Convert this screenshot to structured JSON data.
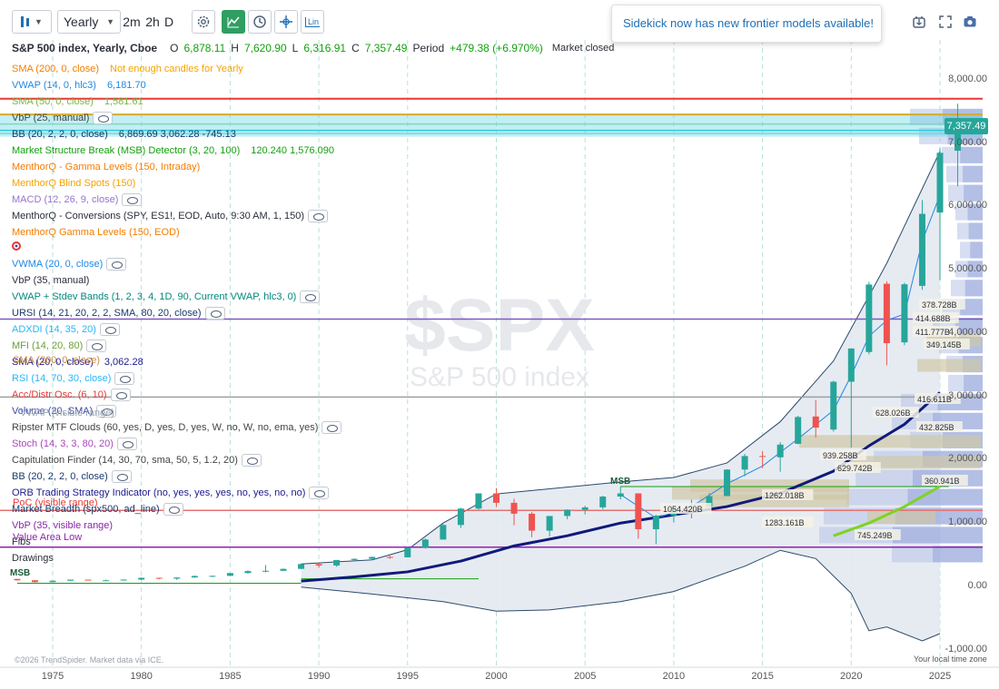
{
  "toolbar": {
    "interval_value": "Yearly",
    "btn_2m": "2m",
    "btn_2h": "2h",
    "btn_d": "D",
    "lin": "Lin"
  },
  "toast": {
    "message": "Sidekick now has new frontier models available!"
  },
  "header": {
    "symbol": "S&P 500 index, Yearly, Cboe",
    "o_label": "O",
    "o_value": "6,878.11",
    "h_label": "H",
    "h_value": "7,620.90",
    "l_label": "L",
    "l_value": "6,316.91",
    "c_label": "C",
    "c_value": "7,357.49",
    "period_label": "Period",
    "period_value": "+479.38 (+6.970%)",
    "market_status": "Market closed"
  },
  "indicators": [
    {
      "name": "SMA (200, 0, close)",
      "value": "Not enough candles for Yearly",
      "color": "#f57c00",
      "value_color": "#f5a300"
    },
    {
      "name": "VWAP (14, 0, hlc3)",
      "value": "6,181.70",
      "color": "#1e88e5",
      "value_color": "#1e88e5"
    },
    {
      "name": "SMA (50, 0, close)",
      "value": "1,581.61",
      "color": "#7cb342",
      "value_color": "#7cb342"
    },
    {
      "name": "VbP (25, manual)",
      "value": "",
      "color": "#444",
      "eye": true
    },
    {
      "name": "BB (20, 2, 2, 0, close)",
      "value": "6,869.69 3,062.28 -745.13",
      "color": "#1a3a6b",
      "value_color": "#1a3a6b"
    },
    {
      "name": "Market Structure Break (MSB) Detector (3, 20, 100)",
      "value": "120.240 1,576.090",
      "color": "#13a10e",
      "value_color": "#13a10e"
    },
    {
      "name": "MenthorQ - Gamma Levels (150, Intraday)",
      "value": "",
      "color": "#f57c00"
    },
    {
      "name": "MenthorQ Blind Spots (150)",
      "value": "",
      "color": "#f5a300"
    },
    {
      "name": "MACD (12, 26, 9, close)",
      "value": "",
      "color": "#9575cd",
      "eye": true
    },
    {
      "name": "MenthorQ - Conversions (SPY, ES1!, EOD, Auto, 9:30 AM, 1, 150)",
      "value": "",
      "color": "#2a2e39",
      "eye": true
    },
    {
      "name": "MenthorQ Gamma Levels (150, EOD)",
      "value": "",
      "color": "#f57c00"
    },
    {
      "name": "",
      "value": "",
      "color": "#e53935",
      "icon": true
    },
    {
      "name": "VWMA (20, 0, close)",
      "value": "",
      "color": "#1e88e5",
      "eye": true
    },
    {
      "name": "VbP (35, manual)",
      "value": "",
      "color": "#2a2e39"
    },
    {
      "name": "VWAP + Stdev Bands (1, 2, 3, 4, 1D, 90, Current VWAP, hlc3, 0)",
      "value": "",
      "color": "#00897b",
      "eye": true
    },
    {
      "name": "URSI (14, 21, 20, 2, 2, SMA, 80, 20, close)",
      "value": "",
      "color": "#1a3a6b",
      "eye": true
    },
    {
      "name": "ADXDI (14, 35, 20)",
      "value": "",
      "color": "#29b6f6",
      "eye": true
    },
    {
      "name": "MFI (14, 20, 80)",
      "value": "",
      "color": "#689f38",
      "eye": true
    },
    {
      "name": "SMA (20, 0, close)",
      "value": "3,062.28",
      "color": "#1a1a8c",
      "value_color": "#1a1a8c"
    },
    {
      "name": "RSI (14, 70, 30, close)",
      "value": "",
      "color": "#29b6f6",
      "eye": true
    },
    {
      "name": "Acc/Distr Osc. (6, 10)",
      "value": "",
      "color": "#e53935",
      "eye": true
    },
    {
      "name": "Volume (20, SMA)",
      "value": "",
      "color": "#3949ab",
      "eye": true
    },
    {
      "name": "Ripster MTF Clouds (60, yes, D, yes, D, yes, W, no, W, no, ema, yes)",
      "value": "",
      "color": "#444",
      "eye": true
    },
    {
      "name": "Stoch (14, 3, 3, 80, 20)",
      "value": "",
      "color": "#ab47bc",
      "eye": true
    },
    {
      "name": "Capitulation Finder (14, 30, 70, sma, 50, 5, 1.2, 20)",
      "value": "",
      "color": "#444",
      "eye": true
    },
    {
      "name": "BB (20, 2, 2, 0, close)",
      "value": "",
      "color": "#1a3a6b",
      "eye": true
    },
    {
      "name": "ORB Trading Strategy Indicator (no, yes, yes, yes, no, yes, no, no)",
      "value": "",
      "color": "#1a1a8c",
      "eye": true
    },
    {
      "name": "Market Breadth (spx500, ad_line)",
      "value": "",
      "color": "#1a3a6b",
      "eye": true
    },
    {
      "name": "VbP (35, visible range)",
      "value": "",
      "color": "#8e24aa"
    },
    {
      "name": "Fibs",
      "value": "",
      "color": "#2a2e39"
    },
    {
      "name": "Drawings",
      "value": "",
      "color": "#2a2e39"
    }
  ],
  "overlapping_labels": {
    "vwap_range": "VWAP (visible range)",
    "sma_ghost": "SMA (200, 0, close)",
    "poc": "PoC (visible range)",
    "val": "Value Area Low"
  },
  "watermark": {
    "symbol": "$SPX",
    "name": "S&P 500 index"
  },
  "y_axis": {
    "ticks": [
      "8,000.00",
      "7,000.00",
      "6,000.00",
      "5,000.00",
      "4,000.00",
      "3,000.00",
      "2,000.00",
      "1,000.00",
      "0.00",
      "-1,000.00"
    ],
    "last_price": "7,357.49"
  },
  "x_axis": {
    "ticks": [
      "1975",
      "1980",
      "1985",
      "1990",
      "1995",
      "2000",
      "2005",
      "2010",
      "2015",
      "2020",
      "2025"
    ]
  },
  "volume_labels": [
    "378.728B",
    "414.688B",
    "411.777B",
    "349.145B",
    "416.611B",
    "628.026B",
    "432.825B",
    "939.258B",
    "629.742B",
    "360.941B",
    "1262.018B",
    "1054.420B",
    "1283.161B",
    "745.249B"
  ],
  "msb_labels": [
    "MSB",
    "MSB"
  ],
  "footer": {
    "credit": "©2026 TrendSpider. Market data via ICE.",
    "timezone": "Your local time zone"
  },
  "chart_data": {
    "type": "candlestick",
    "x": [
      1973,
      1974,
      1975,
      1976,
      1977,
      1978,
      1979,
      1980,
      1981,
      1982,
      1983,
      1984,
      1985,
      1986,
      1987,
      1988,
      1989,
      1990,
      1991,
      1992,
      1993,
      1994,
      1995,
      1996,
      1997,
      1998,
      1999,
      2000,
      2001,
      2002,
      2003,
      2004,
      2005,
      2006,
      2007,
      2008,
      2009,
      2010,
      2011,
      2012,
      2013,
      2014,
      2015,
      2016,
      2017,
      2018,
      2019,
      2020,
      2021,
      2022,
      2023,
      2024,
      2025,
      2026
    ],
    "open": [
      118,
      97,
      68,
      90,
      107,
      95,
      96,
      108,
      136,
      123,
      141,
      165,
      167,
      211,
      242,
      247,
      277,
      353,
      330,
      417,
      435,
      466,
      459,
      616,
      740,
      970,
      1229,
      1469,
      1320,
      1148,
      880,
      1112,
      1212,
      1248,
      1418,
      1468,
      903,
      1116,
      1258,
      1258,
      1426,
      1845,
      2058,
      2038,
      2251,
      2683,
      2476,
      3231,
      3700,
      4778,
      3853,
      4745,
      5903,
      6878
    ],
    "close": [
      97,
      68,
      90,
      107,
      95,
      96,
      108,
      136,
      123,
      141,
      165,
      167,
      211,
      242,
      247,
      277,
      353,
      330,
      417,
      435,
      466,
      459,
      616,
      740,
      970,
      1229,
      1469,
      1320,
      1148,
      880,
      1112,
      1212,
      1248,
      1418,
      1468,
      903,
      1116,
      1258,
      1258,
      1426,
      1845,
      2058,
      2044,
      2239,
      2674,
      2507,
      3231,
      3756,
      4766,
      3840,
      4770,
      5882,
      6846,
      7357
    ],
    "high": [
      120,
      100,
      95,
      108,
      107,
      107,
      112,
      141,
      138,
      144,
      172,
      170,
      213,
      254,
      337,
      283,
      360,
      369,
      417,
      442,
      471,
      482,
      622,
      757,
      984,
      1241,
      1469,
      1553,
      1383,
      1173,
      1112,
      1217,
      1273,
      1431,
      1576,
      1471,
      1130,
      1263,
      1370,
      1475,
      1849,
      2093,
      2134,
      2277,
      2695,
      2941,
      3248,
      3760,
      4808,
      4818,
      4794,
      6099,
      6920,
      7621
    ],
    "low": [
      92,
      62,
      70,
      90,
      92,
      86,
      96,
      98,
      112,
      102,
      138,
      147,
      163,
      203,
      224,
      243,
      276,
      295,
      311,
      394,
      429,
      435,
      459,
      598,
      737,
      923,
      1212,
      1254,
      966,
      777,
      789,
      1061,
      1137,
      1219,
      1374,
      752,
      667,
      1011,
      1075,
      1258,
      1426,
      1738,
      1867,
      1810,
      2245,
      2351,
      2444,
      2192,
      3662,
      3492,
      3808,
      4682,
      4835,
      6317
    ],
    "overlays": {
      "sma_20_last": 3062.28,
      "bb_upper_last": 6869.69,
      "bb_lower_last": -745.13,
      "vwap_14_last": 6181.7,
      "sma_50_last": 1581.61
    },
    "levels": [
      7700,
      7450,
      7300,
      7200,
      7150,
      4220,
      2990,
      1200,
      620
    ],
    "ylim": [
      -1000,
      8000
    ],
    "xlim": [
      1971,
      2027
    ]
  }
}
